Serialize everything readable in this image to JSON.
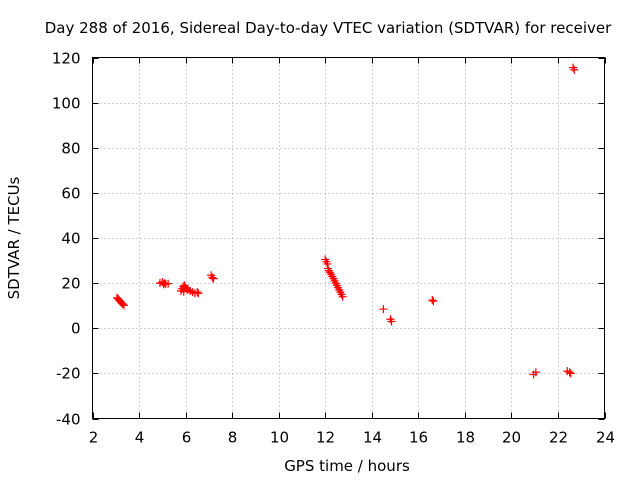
{
  "chart_data": {
    "type": "scatter",
    "title": "Day 288 of 2016, Sidereal Day-to-day VTEC variation (SDTVAR) for receiver",
    "xlabel": "GPS time / hours",
    "ylabel": "SDTVAR / TECUs",
    "xlim": [
      2,
      24
    ],
    "ylim": [
      -40,
      120
    ],
    "xticks": [
      2,
      4,
      6,
      8,
      10,
      12,
      14,
      16,
      18,
      20,
      22,
      24
    ],
    "yticks": [
      -40,
      -20,
      0,
      20,
      40,
      60,
      80,
      100,
      120
    ],
    "grid": true,
    "marker": "plus",
    "color": "#ff0000",
    "series": [
      {
        "name": "SDTVAR",
        "points": [
          [
            3.05,
            13.5
          ],
          [
            3.1,
            13.0
          ],
          [
            3.15,
            12.4
          ],
          [
            3.2,
            11.8
          ],
          [
            3.25,
            11.2
          ],
          [
            3.3,
            10.7
          ],
          [
            3.35,
            10.2
          ],
          [
            4.9,
            20.0
          ],
          [
            5.0,
            20.5
          ],
          [
            5.05,
            19.5
          ],
          [
            5.1,
            20.0
          ],
          [
            5.15,
            19.6
          ],
          [
            5.25,
            19.8
          ],
          [
            5.8,
            16.5
          ],
          [
            5.85,
            17.5
          ],
          [
            5.9,
            18.5
          ],
          [
            5.92,
            16.2
          ],
          [
            5.95,
            19.0
          ],
          [
            6.0,
            18.0
          ],
          [
            6.05,
            17.5
          ],
          [
            6.1,
            17.0
          ],
          [
            6.2,
            16.5
          ],
          [
            6.3,
            16.0
          ],
          [
            6.4,
            15.5
          ],
          [
            6.5,
            16.0
          ],
          [
            6.55,
            15.5
          ],
          [
            7.1,
            23.5
          ],
          [
            7.15,
            22.5
          ],
          [
            7.2,
            22.0
          ],
          [
            12.0,
            30.5
          ],
          [
            12.05,
            29.5
          ],
          [
            12.1,
            28.5
          ],
          [
            12.12,
            26.5
          ],
          [
            12.15,
            25.5
          ],
          [
            12.2,
            24.8
          ],
          [
            12.25,
            24.0
          ],
          [
            12.3,
            23.0
          ],
          [
            12.35,
            22.0
          ],
          [
            12.4,
            21.0
          ],
          [
            12.45,
            20.0
          ],
          [
            12.5,
            19.0
          ],
          [
            12.55,
            18.0
          ],
          [
            12.6,
            17.0
          ],
          [
            12.65,
            16.0
          ],
          [
            12.7,
            15.0
          ],
          [
            12.75,
            14.0
          ],
          [
            14.5,
            8.5
          ],
          [
            14.8,
            4.0
          ],
          [
            14.85,
            3.0
          ],
          [
            16.6,
            12.5
          ],
          [
            16.65,
            12.0
          ],
          [
            20.95,
            -20.5
          ],
          [
            21.05,
            -19.5
          ],
          [
            22.4,
            -19.0
          ],
          [
            22.5,
            -19.5
          ],
          [
            22.55,
            -20.0
          ],
          [
            22.65,
            115.5
          ],
          [
            22.7,
            114.5
          ]
        ]
      }
    ]
  }
}
